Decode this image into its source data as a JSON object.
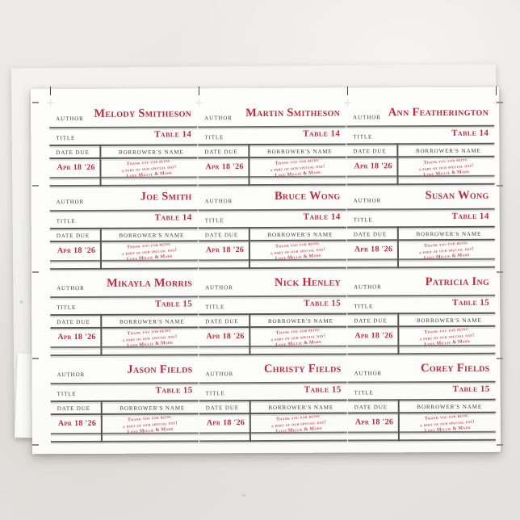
{
  "colors": {
    "accent_red": "#c2293c",
    "rule_gray": "#6c6c6c",
    "label_gray": "#3d3d3d"
  },
  "labels": {
    "author": "AUTHOR",
    "title": "TITLE",
    "date_due": "DATE DUE",
    "borrowers_name": "BORROWER'S NAME"
  },
  "stamp": {
    "line1": "Thank you for being",
    "line2": "a part of our special day!",
    "line3": "Love Millie & Mark"
  },
  "cards": [
    {
      "name": "Melody Smitheson",
      "table": "Table 14",
      "date": "Apr 18 '26"
    },
    {
      "name": "Martin Smitheson",
      "table": "Table 14",
      "date": "Apr 18 '26"
    },
    {
      "name": "Ann Featherington",
      "table": "Table 14",
      "date": "Apr 18 '26"
    },
    {
      "name": "Joe Smith",
      "table": "Table 14",
      "date": "Apr 18 '26"
    },
    {
      "name": "Bruce Wong",
      "table": "Table 14",
      "date": "Apr 18 '26"
    },
    {
      "name": "Susan Wong",
      "table": "Table 14",
      "date": "Apr 18 '26"
    },
    {
      "name": "Mikayla Morris",
      "table": "Table 15",
      "date": "Apr 18 '26"
    },
    {
      "name": "Nick Henley",
      "table": "Table 15",
      "date": "Apr 18 '26"
    },
    {
      "name": "Patricia Ing",
      "table": "Table 15",
      "date": "Apr 18 '26"
    },
    {
      "name": "Jason Fields",
      "table": "Table 15",
      "date": "Apr 18 '26"
    },
    {
      "name": "Christy Fields",
      "table": "Table 15",
      "date": "Apr 18 '26"
    },
    {
      "name": "Corey Fields",
      "table": "Table 15",
      "date": "Apr 18 '26"
    }
  ]
}
